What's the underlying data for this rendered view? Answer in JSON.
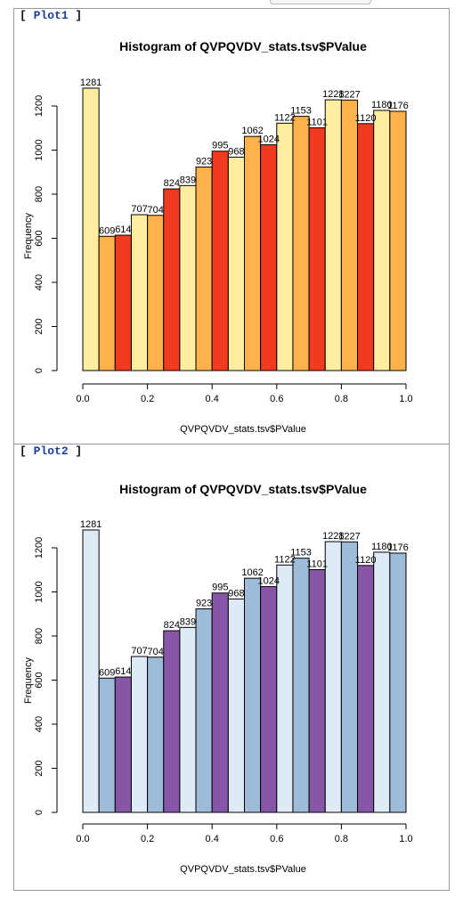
{
  "plots": [
    {
      "label_name": "Plot1",
      "chart_data": {
        "type": "bar",
        "title": "Histogram of QVPQVDV_stats.tsv$PValue",
        "xlabel": "QVPQVDV_stats.tsv$PValue",
        "ylabel": "Frequency",
        "bin_edges": [
          0.0,
          0.05,
          0.1,
          0.15,
          0.2,
          0.25,
          0.3,
          0.35,
          0.4,
          0.45,
          0.5,
          0.55,
          0.6,
          0.65,
          0.7,
          0.75,
          0.8,
          0.85,
          0.9,
          0.95,
          1.0
        ],
        "values": [
          1281,
          609,
          614,
          707,
          704,
          824,
          839,
          923,
          995,
          968,
          1062,
          1024,
          1122,
          1153,
          1101,
          1228,
          1227,
          1120,
          1180,
          1176
        ],
        "value_labels": [
          "1281",
          "609",
          "614",
          "707",
          "704",
          "824",
          "839",
          "923",
          "995",
          "968",
          "1062",
          "1024",
          "1122",
          "1153",
          "1101",
          "1228",
          "1227",
          "1120",
          "1180",
          "1176"
        ],
        "xlim": [
          0,
          1
        ],
        "ylim": [
          0,
          1300
        ],
        "x_ticks": [
          "0.0",
          "0.2",
          "0.4",
          "0.6",
          "0.8",
          "1.0"
        ],
        "y_ticks": [
          "0",
          "200",
          "400",
          "600",
          "800",
          "1000",
          "1200"
        ],
        "colors": [
          "#ffeda0",
          "#feb24c",
          "#f03b20"
        ]
      }
    },
    {
      "label_name": "Plot2",
      "chart_data": {
        "type": "bar",
        "title": "Histogram of QVPQVDV_stats.tsv$PValue",
        "xlabel": "QVPQVDV_stats.tsv$PValue",
        "ylabel": "Frequency",
        "bin_edges": [
          0.0,
          0.05,
          0.1,
          0.15,
          0.2,
          0.25,
          0.3,
          0.35,
          0.4,
          0.45,
          0.5,
          0.55,
          0.6,
          0.65,
          0.7,
          0.75,
          0.8,
          0.85,
          0.9,
          0.95,
          1.0
        ],
        "values": [
          1281,
          609,
          614,
          707,
          704,
          824,
          839,
          923,
          995,
          968,
          1062,
          1024,
          1122,
          1153,
          1101,
          1228,
          1227,
          1120,
          1180,
          1176
        ],
        "value_labels": [
          "1281",
          "609",
          "614",
          "707",
          "704",
          "824",
          "839",
          "923",
          "995",
          "968",
          "1062",
          "1024",
          "1122",
          "1153",
          "1101",
          "1228",
          "1227",
          "1120",
          "1180",
          "1176"
        ],
        "xlim": [
          0,
          1
        ],
        "ylim": [
          0,
          1300
        ],
        "x_ticks": [
          "0.0",
          "0.2",
          "0.4",
          "0.6",
          "0.8",
          "1.0"
        ],
        "y_ticks": [
          "0",
          "200",
          "400",
          "600",
          "800",
          "1000",
          "1200"
        ],
        "colors": [
          "#deebf7",
          "#9ebcda",
          "#8856a7"
        ]
      }
    }
  ]
}
